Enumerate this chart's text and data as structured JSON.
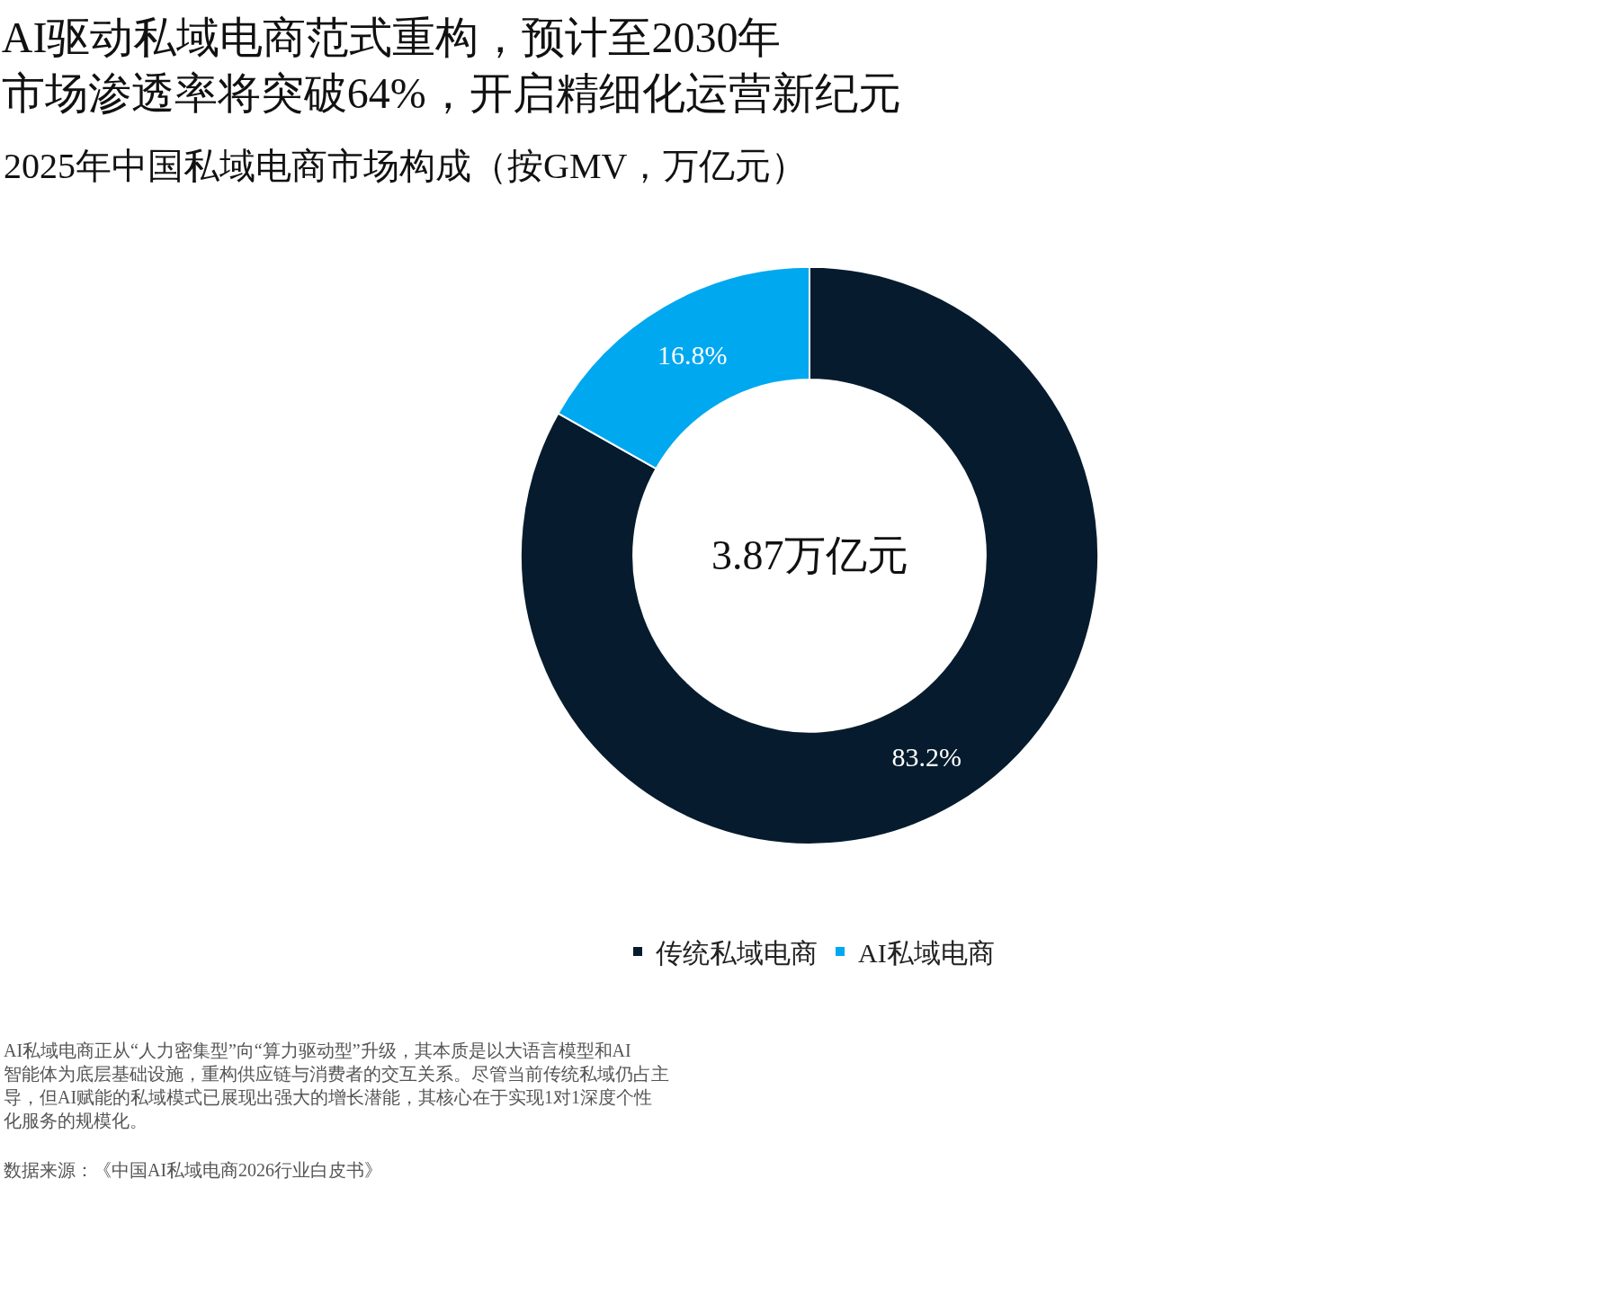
{
  "chart_data": {
    "type": "donut",
    "title": "AI驱动私域电商范式重构，预计至2030年市场渗透率将突破64%，开启精细化运营新纪元",
    "subtitle": "2025年中国私域电商市场构成（按GMV，万亿元）",
    "categories": [
      "传统私域电商",
      "AI私域电商"
    ],
    "values": [
      83.2,
      16.8
    ],
    "value_labels": [
      "83.2%",
      "16.8%"
    ],
    "colors": [
      "#061c2e",
      "#00a8f0"
    ],
    "legend": "bottom",
    "annotations": [
      "3.87万亿元",
      "AI私域电商正从“人力密集型”向“算力驱动型”升级，其本质是以大语言模型和AI智能体为底层基础设施，重构供应链与消费者的交互关系。尽管当前传统私域仍占主导，但AI赋能的私域模式已展现出强大的增长潜能，其核心在于实现1对1深度个性化服务的规模化。",
      "数据来源：《中国AI私域电商2026行业白皮书》"
    ]
  }
}
